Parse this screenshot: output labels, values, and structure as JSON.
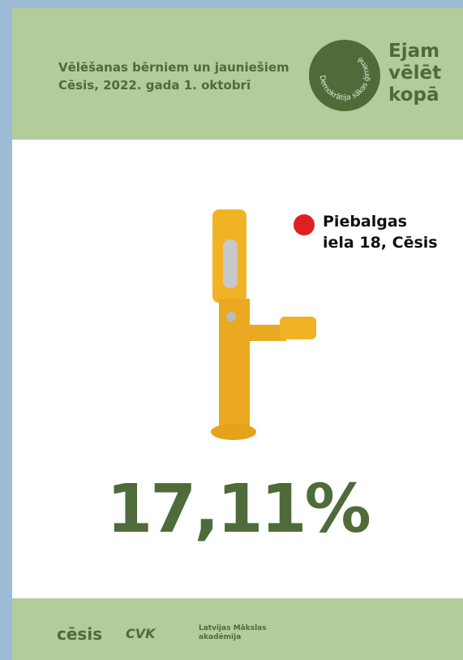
{
  "header": {
    "title_lines": [
      "Vēlēšanas bērniem un jauniešiem",
      "Cēsis, 2022. gada 1. oktobrī"
    ],
    "logo": {
      "circle_text": "Demokrātija sākas ģimenē",
      "words": [
        "Ejam",
        "vēlēt",
        "kopā"
      ]
    }
  },
  "location": {
    "lines": [
      "Piebalgas",
      "iela 18, Cēsis"
    ]
  },
  "result": "17,11%",
  "footer": {
    "logos": [
      "cēsis",
      "CVK"
    ],
    "academy_lines": [
      "Latvijas Mākslas",
      "akadēmija"
    ]
  }
}
